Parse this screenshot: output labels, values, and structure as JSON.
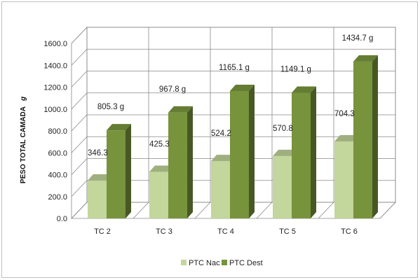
{
  "chart_data": {
    "type": "bar",
    "categories": [
      "TC 2",
      "TC 3",
      "TC 4",
      "TC 5",
      "TC 6"
    ],
    "series": [
      {
        "name": "PTC Nac",
        "values": [
          346.3,
          425.3,
          524.2,
          570.8,
          704.3
        ],
        "labels": [
          "346.3",
          "425.3",
          "524.2",
          "570.8",
          "704.3"
        ],
        "color": "#c3d69b"
      },
      {
        "name": "PTC Dest",
        "values": [
          805.3,
          967.8,
          1165.1,
          1149.1,
          1434.7
        ],
        "labels": [
          "805.3 g",
          "967.8 g",
          "1165.1 g",
          "1149.1 g",
          "1434.7 g"
        ],
        "color": "#77933c"
      }
    ],
    "ylabel": "PESO TOTAL CAMADA",
    "ylabel_unit": "g",
    "ylim": [
      0,
      1600
    ],
    "yticks": [
      "0.0",
      "200.0",
      "400.0",
      "600.0",
      "800.0",
      "1000.0",
      "1200.0",
      "1400.0",
      "1600.0"
    ],
    "grid": true,
    "legend": "bottom",
    "three_d": true
  }
}
